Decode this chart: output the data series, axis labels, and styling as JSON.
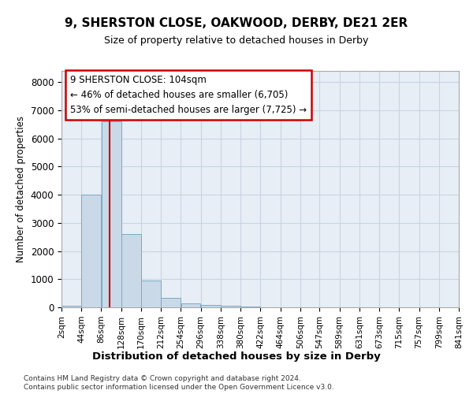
{
  "title1": "9, SHERSTON CLOSE, OAKWOOD, DERBY, DE21 2ER",
  "title2": "Size of property relative to detached houses in Derby",
  "xlabel": "Distribution of detached houses by size in Derby",
  "ylabel": "Number of detached properties",
  "bin_edges": [
    2,
    44,
    86,
    128,
    170,
    212,
    254,
    296,
    338,
    380,
    422,
    464,
    506,
    547,
    589,
    631,
    673,
    715,
    757,
    799,
    841
  ],
  "bin_labels": [
    "2sqm",
    "44sqm",
    "86sqm",
    "128sqm",
    "170sqm",
    "212sqm",
    "254sqm",
    "296sqm",
    "338sqm",
    "380sqm",
    "422sqm",
    "464sqm",
    "506sqm",
    "547sqm",
    "589sqm",
    "631sqm",
    "673sqm",
    "715sqm",
    "757sqm",
    "799sqm",
    "841sqm"
  ],
  "bar_heights": [
    50,
    4000,
    6600,
    2600,
    950,
    330,
    130,
    80,
    50,
    20,
    10,
    5,
    3,
    2,
    1,
    1,
    1,
    1,
    1,
    1
  ],
  "bar_color": "#c9d9e8",
  "bar_edge_color": "#7aaac8",
  "grid_color": "#c8d4e4",
  "background_color": "#e8eef5",
  "property_size": 104,
  "vline_color": "#cc0000",
  "annotation_line1": "9 SHERSTON CLOSE: 104sqm",
  "annotation_line2": "← 46% of detached houses are smaller (6,705)",
  "annotation_line3": "53% of semi-detached houses are larger (7,725) →",
  "annotation_box_color": "#ffffff",
  "annotation_box_edge": "#cc0000",
  "ylim": [
    0,
    8400
  ],
  "yticks": [
    0,
    1000,
    2000,
    3000,
    4000,
    5000,
    6000,
    7000,
    8000
  ],
  "footer": "Contains HM Land Registry data © Crown copyright and database right 2024.\nContains public sector information licensed under the Open Government Licence v3.0."
}
